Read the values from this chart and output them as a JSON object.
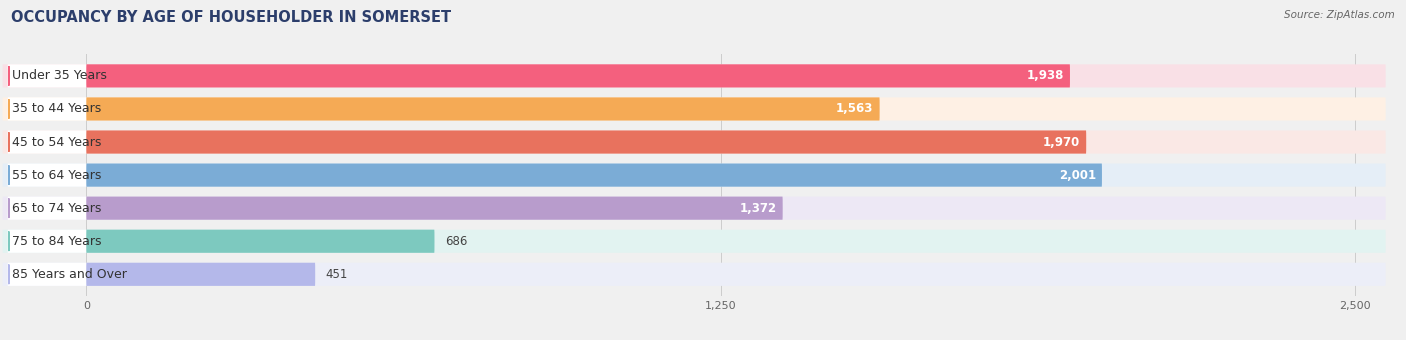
{
  "title": "OCCUPANCY BY AGE OF HOUSEHOLDER IN SOMERSET",
  "source": "Source: ZipAtlas.com",
  "categories": [
    "Under 35 Years",
    "35 to 44 Years",
    "45 to 54 Years",
    "55 to 64 Years",
    "65 to 74 Years",
    "75 to 84 Years",
    "85 Years and Over"
  ],
  "values": [
    1938,
    1563,
    1970,
    2001,
    1372,
    686,
    451
  ],
  "bar_colors": [
    "#f4607e",
    "#f5aa55",
    "#e8725e",
    "#7bacd6",
    "#b89ccc",
    "#7dc9bf",
    "#b4b8ea"
  ],
  "bar_bg_colors": [
    "#f9e0e6",
    "#fef0e4",
    "#fae8e5",
    "#e5eef7",
    "#ede8f5",
    "#e2f3f1",
    "#eceef8"
  ],
  "value_colors_inside": [
    "white",
    "white",
    "white",
    "white",
    "#555555",
    "#555555",
    "#555555"
  ],
  "xlim_data": [
    0,
    2500
  ],
  "xticks": [
    0,
    1250,
    2500
  ],
  "title_fontsize": 10.5,
  "label_fontsize": 9,
  "value_fontsize": 8.5,
  "background_color": "#f0f0f0",
  "white": "#ffffff"
}
